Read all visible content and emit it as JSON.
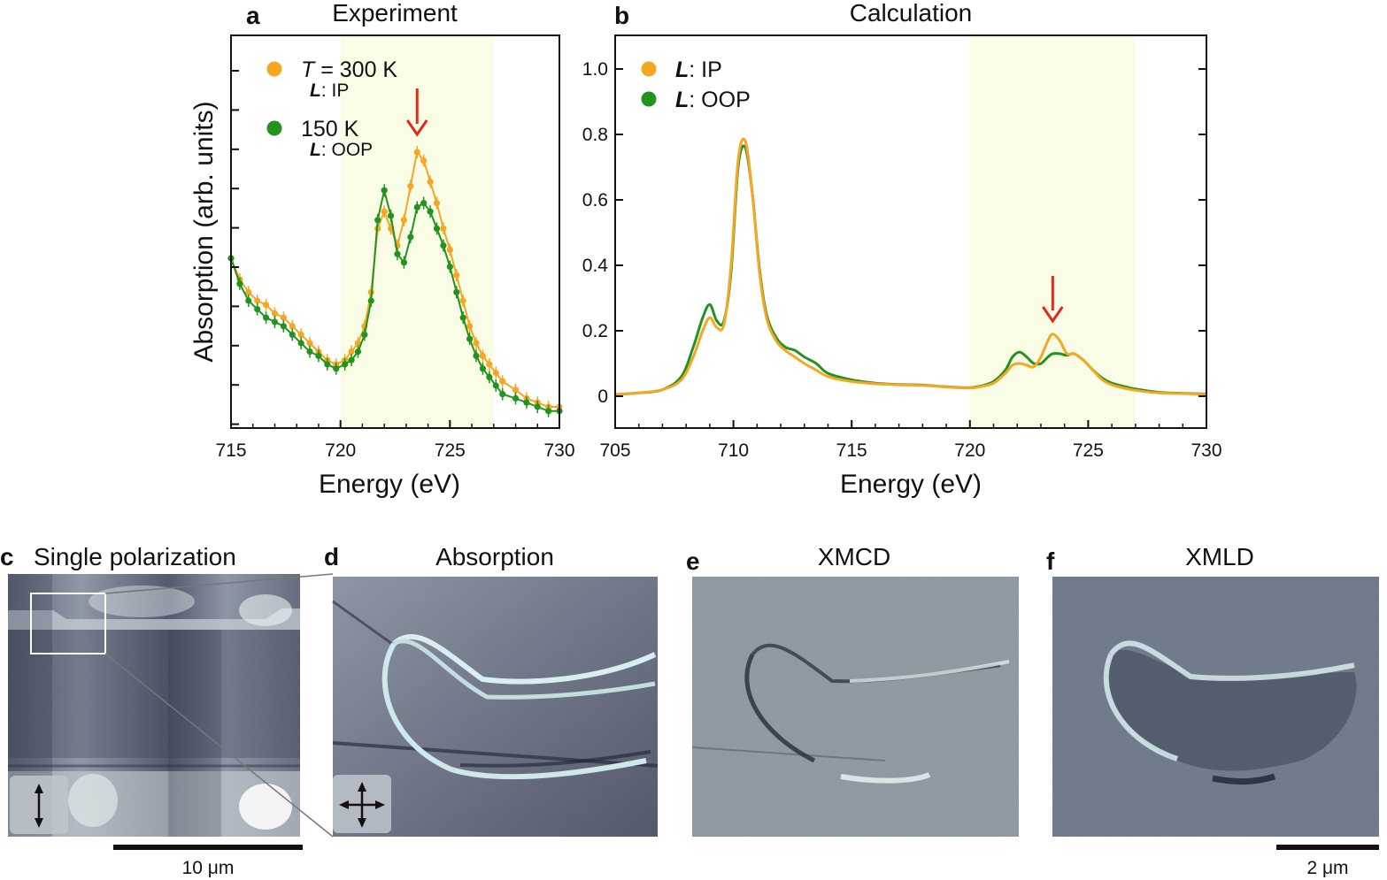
{
  "chart_data": [
    {
      "panel": "a",
      "type": "line",
      "title": "Experiment",
      "xlabel": "Energy (eV)",
      "ylabel": "Absorption (arb. units)",
      "xlim": [
        715,
        730
      ],
      "ylim": [
        0,
        1
      ],
      "xticks": [
        715,
        720,
        725,
        730
      ],
      "shaded_region": [
        720,
        727
      ],
      "arrow_at_x": 723.5,
      "legend": [
        {
          "name_italic": "T",
          "name": " = 300 K",
          "sub_bold": "L",
          "sub": ": IP",
          "color": "#f5a623"
        },
        {
          "name_italic": "",
          "name": "150 K",
          "sub_bold": "L",
          "sub": ": OOP",
          "color": "#22931f"
        }
      ],
      "series": [
        {
          "name": "T = 300 K, L: IP",
          "color": "#f5a623",
          "x": [
            715.0,
            715.4,
            715.8,
            716.2,
            716.6,
            717.0,
            717.4,
            717.8,
            718.2,
            718.6,
            719.0,
            719.4,
            719.8,
            720.2,
            720.5,
            720.8,
            721.1,
            721.4,
            721.7,
            722.0,
            722.3,
            722.6,
            722.9,
            723.2,
            723.5,
            723.8,
            724.1,
            724.4,
            724.7,
            725.0,
            725.3,
            725.6,
            725.9,
            726.2,
            726.5,
            726.8,
            727.1,
            727.4,
            728.0,
            728.5,
            729.0,
            729.5,
            730.0
          ],
          "values": [
            0.45,
            0.4,
            0.37,
            0.35,
            0.34,
            0.32,
            0.31,
            0.29,
            0.27,
            0.25,
            0.23,
            0.21,
            0.2,
            0.21,
            0.23,
            0.25,
            0.29,
            0.37,
            0.52,
            0.56,
            0.52,
            0.48,
            0.54,
            0.62,
            0.7,
            0.68,
            0.63,
            0.58,
            0.52,
            0.47,
            0.41,
            0.35,
            0.29,
            0.25,
            0.22,
            0.2,
            0.18,
            0.16,
            0.14,
            0.12,
            0.11,
            0.1,
            0.1
          ]
        },
        {
          "name": "150 K, L: OOP",
          "color": "#22931f",
          "x": [
            715.0,
            715.4,
            715.8,
            716.2,
            716.6,
            717.0,
            717.4,
            717.8,
            718.2,
            718.6,
            719.0,
            719.4,
            719.8,
            720.2,
            720.5,
            720.8,
            721.1,
            721.4,
            721.7,
            722.0,
            722.3,
            722.6,
            722.9,
            723.2,
            723.5,
            723.8,
            724.1,
            724.4,
            724.7,
            725.0,
            725.3,
            725.6,
            725.9,
            726.2,
            726.5,
            726.8,
            727.1,
            727.4,
            728.0,
            728.5,
            729.0,
            729.5,
            730.0
          ],
          "values": [
            0.45,
            0.39,
            0.35,
            0.33,
            0.31,
            0.3,
            0.29,
            0.27,
            0.25,
            0.23,
            0.22,
            0.2,
            0.19,
            0.2,
            0.21,
            0.23,
            0.27,
            0.35,
            0.54,
            0.61,
            0.55,
            0.46,
            0.44,
            0.5,
            0.57,
            0.58,
            0.56,
            0.52,
            0.48,
            0.43,
            0.37,
            0.31,
            0.26,
            0.22,
            0.19,
            0.17,
            0.15,
            0.13,
            0.12,
            0.11,
            0.1,
            0.09,
            0.09
          ]
        }
      ]
    },
    {
      "panel": "b",
      "type": "line",
      "title": "Calculation",
      "xlabel": "Energy (eV)",
      "ylabel": "",
      "xlim": [
        705,
        730
      ],
      "ylim": [
        -0.1,
        1.1
      ],
      "xticks": [
        705,
        710,
        715,
        720,
        725,
        730
      ],
      "yticks": [
        0,
        0.2,
        0.4,
        0.6,
        0.8,
        1.0
      ],
      "ytick_labels": [
        "0",
        "0.2",
        "0.4",
        "0.6",
        "0.8",
        "1.0"
      ],
      "shaded_region": [
        720,
        727
      ],
      "arrow_at_x": 723.5,
      "legend": [
        {
          "bold": "L",
          "name": ": IP",
          "color": "#f5a623"
        },
        {
          "bold": "L",
          "name": ": OOP",
          "color": "#22931f"
        }
      ],
      "series": [
        {
          "name": "L: IP",
          "color": "#f5a623",
          "x": [
            705,
            706,
            707,
            707.8,
            708.3,
            708.7,
            709.0,
            709.3,
            709.6,
            709.9,
            710.2,
            710.5,
            710.8,
            711.1,
            711.4,
            711.8,
            712.2,
            712.6,
            713.0,
            713.5,
            714.0,
            715,
            716,
            717,
            718,
            719,
            720,
            720.5,
            721,
            721.5,
            721.8,
            722.1,
            722.4,
            722.7,
            723.0,
            723.3,
            723.5,
            723.8,
            724.1,
            724.4,
            724.8,
            725.2,
            725.6,
            726,
            726.5,
            727,
            728,
            729,
            730
          ],
          "values": [
            0.005,
            0.01,
            0.02,
            0.05,
            0.12,
            0.2,
            0.24,
            0.21,
            0.22,
            0.4,
            0.72,
            0.78,
            0.62,
            0.38,
            0.24,
            0.17,
            0.14,
            0.12,
            0.1,
            0.08,
            0.06,
            0.045,
            0.038,
            0.035,
            0.033,
            0.028,
            0.025,
            0.03,
            0.04,
            0.07,
            0.095,
            0.1,
            0.095,
            0.09,
            0.12,
            0.17,
            0.19,
            0.17,
            0.13,
            0.13,
            0.11,
            0.08,
            0.05,
            0.035,
            0.025,
            0.018,
            0.01,
            0.008,
            0.006
          ]
        },
        {
          "name": "L: OOP",
          "color": "#22931f",
          "x": [
            705,
            706,
            707,
            707.8,
            708.3,
            708.7,
            709.0,
            709.3,
            709.6,
            709.9,
            710.2,
            710.5,
            710.8,
            711.1,
            711.4,
            711.8,
            712.2,
            712.6,
            713.0,
            713.5,
            714.0,
            715,
            716,
            717,
            718,
            719,
            720,
            720.5,
            721,
            721.5,
            721.8,
            722.1,
            722.4,
            722.7,
            723.0,
            723.3,
            723.5,
            723.8,
            724.1,
            724.4,
            724.8,
            725.2,
            725.6,
            726,
            726.5,
            727,
            728,
            729,
            730
          ],
          "values": [
            0.005,
            0.01,
            0.02,
            0.06,
            0.15,
            0.24,
            0.28,
            0.23,
            0.23,
            0.38,
            0.7,
            0.76,
            0.62,
            0.39,
            0.25,
            0.18,
            0.15,
            0.14,
            0.12,
            0.1,
            0.07,
            0.05,
            0.04,
            0.036,
            0.034,
            0.029,
            0.026,
            0.032,
            0.045,
            0.08,
            0.12,
            0.135,
            0.12,
            0.1,
            0.1,
            0.12,
            0.13,
            0.13,
            0.125,
            0.13,
            0.11,
            0.08,
            0.055,
            0.04,
            0.03,
            0.022,
            0.012,
            0.009,
            0.007
          ]
        }
      ]
    }
  ],
  "images": {
    "c": {
      "letter": "c",
      "title": "Single polarization",
      "scale_label": "10 μm"
    },
    "d": {
      "letter": "d",
      "title": "Absorption"
    },
    "e": {
      "letter": "e",
      "title": "XMCD"
    },
    "f": {
      "letter": "f",
      "title": "XMLD",
      "scale_label": "2 μm"
    }
  },
  "colors": {
    "shade": "#fafde6",
    "arrow": "#e0281c",
    "frame": "#111111"
  }
}
